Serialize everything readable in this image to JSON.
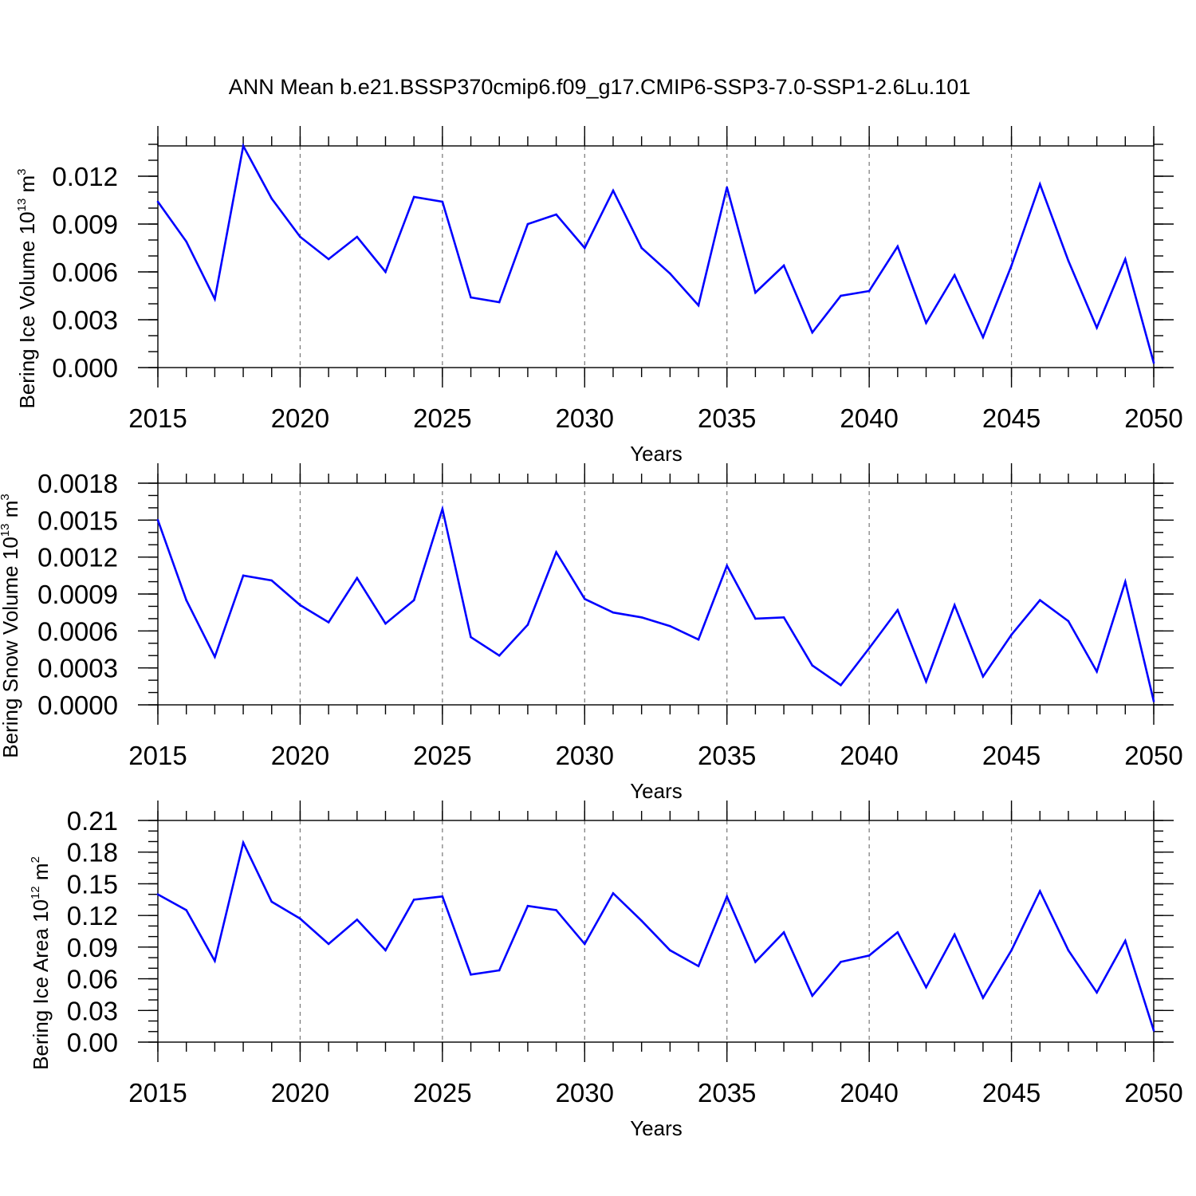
{
  "chart_data": {
    "title": "ANN Mean b.e21.BSSP370cmip6.f09_g17.CMIP6-SSP3-7.0-SSP1-2.6Lu.101",
    "type": "line",
    "line_color": "#0000ff",
    "x": [
      2015,
      2016,
      2017,
      2018,
      2019,
      2020,
      2021,
      2022,
      2023,
      2024,
      2025,
      2026,
      2027,
      2028,
      2029,
      2030,
      2031,
      2032,
      2033,
      2034,
      2035,
      2036,
      2037,
      2038,
      2039,
      2040,
      2041,
      2042,
      2043,
      2044,
      2045,
      2046,
      2047,
      2048,
      2049,
      2050
    ],
    "panels": [
      {
        "name": "ice-volume",
        "ylabel": "Bering Ice Volume 10",
        "ylabel_exp": "13",
        "ylabel_unit": "m",
        "ylabel_unit_exp": "3",
        "xlabel": "Years",
        "xlim": [
          2015,
          2050
        ],
        "ylim": [
          0,
          0.0139
        ],
        "yticks": [
          0,
          0.003,
          0.006,
          0.009,
          0.012
        ],
        "ytick_labels": [
          "0.000",
          "0.003",
          "0.006",
          "0.009",
          "0.012"
        ],
        "xticks": [
          2015,
          2020,
          2025,
          2030,
          2035,
          2040,
          2045,
          2050
        ],
        "xtick_labels": [
          "2015",
          "2020",
          "2025",
          "2030",
          "2035",
          "2040",
          "2045",
          "2050"
        ],
        "minor_step": 0.001,
        "values": [
          0.0104,
          0.0079,
          0.0043,
          0.0139,
          0.0106,
          0.0082,
          0.0068,
          0.0082,
          0.006,
          0.0107,
          0.0104,
          0.0044,
          0.0041,
          0.009,
          0.0096,
          0.0075,
          0.0111,
          0.0075,
          0.0059,
          0.0039,
          0.0113,
          0.0047,
          0.0064,
          0.0022,
          0.0045,
          0.0048,
          0.0076,
          0.0028,
          0.0058,
          0.0019,
          0.0064,
          0.0115,
          0.0067,
          0.0025,
          0.0068,
          0.0003
        ]
      },
      {
        "name": "snow-volume",
        "ylabel": "Bering Snow Volume 10",
        "ylabel_exp": "13",
        "ylabel_unit": "m",
        "ylabel_unit_exp": "3",
        "xlabel": "Years",
        "xlim": [
          2015,
          2050
        ],
        "ylim": [
          0,
          0.0018
        ],
        "yticks": [
          0,
          0.0003,
          0.0006,
          0.0009,
          0.0012,
          0.0015,
          0.0018
        ],
        "ytick_labels": [
          "0.0000",
          "0.0003",
          "0.0006",
          "0.0009",
          "0.0012",
          "0.0015",
          "0.0018"
        ],
        "xticks": [
          2015,
          2020,
          2025,
          2030,
          2035,
          2040,
          2045,
          2050
        ],
        "xtick_labels": [
          "2015",
          "2020",
          "2025",
          "2030",
          "2035",
          "2040",
          "2045",
          "2050"
        ],
        "minor_step": 0.0001,
        "values": [
          0.0015,
          0.00085,
          0.00039,
          0.00105,
          0.00101,
          0.00081,
          0.00067,
          0.00103,
          0.00066,
          0.00085,
          0.00159,
          0.00055,
          0.0004,
          0.00065,
          0.00124,
          0.00086,
          0.00075,
          0.00071,
          0.00064,
          0.00053,
          0.00113,
          0.0007,
          0.00071,
          0.00032,
          0.00016,
          0.00046,
          0.00077,
          0.00019,
          0.00081,
          0.00023,
          0.00057,
          0.00085,
          0.00068,
          0.00027,
          0.001,
          3e-05
        ]
      },
      {
        "name": "ice-area",
        "ylabel": "Bering Ice Area 10",
        "ylabel_exp": "12",
        "ylabel_unit": "m",
        "ylabel_unit_exp": "2",
        "xlabel": "Years",
        "xlim": [
          2015,
          2050
        ],
        "ylim": [
          0,
          0.21
        ],
        "yticks": [
          0,
          0.03,
          0.06,
          0.09,
          0.12,
          0.15,
          0.18,
          0.21
        ],
        "ytick_labels": [
          "0.00",
          "0.03",
          "0.06",
          "0.09",
          "0.12",
          "0.15",
          "0.18",
          "0.21"
        ],
        "xticks": [
          2015,
          2020,
          2025,
          2030,
          2035,
          2040,
          2045,
          2050
        ],
        "xtick_labels": [
          "2015",
          "2020",
          "2025",
          "2030",
          "2035",
          "2040",
          "2045",
          "2050"
        ],
        "minor_step": 0.01,
        "values": [
          0.14,
          0.125,
          0.077,
          0.189,
          0.133,
          0.117,
          0.093,
          0.116,
          0.087,
          0.135,
          0.138,
          0.064,
          0.068,
          0.129,
          0.125,
          0.093,
          0.141,
          0.115,
          0.087,
          0.072,
          0.138,
          0.076,
          0.104,
          0.044,
          0.076,
          0.082,
          0.104,
          0.052,
          0.102,
          0.042,
          0.087,
          0.143,
          0.087,
          0.047,
          0.096,
          0.011
        ]
      }
    ]
  }
}
